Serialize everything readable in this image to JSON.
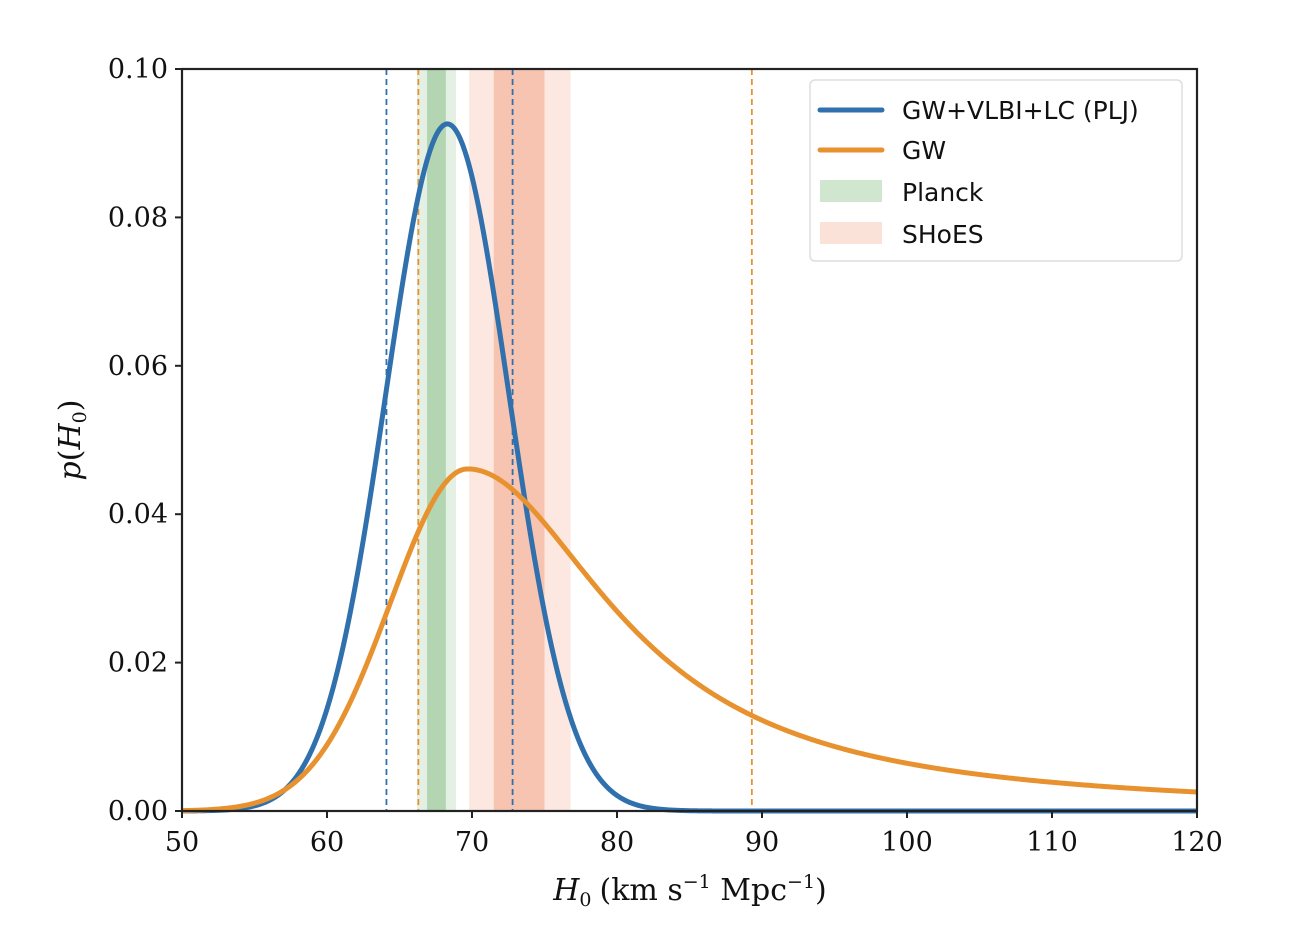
{
  "chart_data": {
    "type": "line",
    "xlim": [
      50,
      120
    ],
    "ylim": [
      0,
      0.1
    ],
    "x_ticks": [
      50,
      60,
      70,
      80,
      90,
      100,
      110,
      120
    ],
    "x_tick_labels": [
      "50",
      "60",
      "70",
      "80",
      "90",
      "100",
      "110",
      "120"
    ],
    "y_ticks": [
      0,
      0.02,
      0.04,
      0.06,
      0.08,
      0.1
    ],
    "y_tick_labels": [
      "0.00",
      "0.02",
      "0.04",
      "0.06",
      "0.08",
      "0.10"
    ],
    "xlabel": {
      "sym": "H",
      "sub": "0",
      "open": "(km s",
      "sup1": "−1",
      "mid": " Mpc",
      "sup2": "−1",
      "close": ")"
    },
    "ylabel": {
      "p": "p",
      "open": "(",
      "sym": "H",
      "sub": "0",
      "close": ")"
    },
    "series": [
      {
        "name": "GW+VLBI+LC (PLJ)",
        "color": "#3070ad",
        "shape": "gaussian",
        "peak_x": 68.3,
        "peak_y": 0.0926,
        "sigma": 4.25,
        "credible_interval": [
          64.1,
          72.8
        ]
      },
      {
        "name": "GW",
        "color": "#e8922f",
        "shape": "skewed",
        "peak_x": 69.7,
        "peak_y": 0.0461,
        "sigma_left": 5.35,
        "tail_gamma": 12.2,
        "credible_interval": [
          66.3,
          89.3
        ]
      }
    ],
    "bands": [
      {
        "name": "Planck",
        "color": "#5aa454",
        "inner": [
          66.9,
          68.2
        ],
        "outer": [
          66.2,
          68.9
        ],
        "inner_opacity": 0.35,
        "outer_opacity": 0.16
      },
      {
        "name": "SHoES",
        "color": "#ee8a66",
        "inner": [
          71.5,
          75.0
        ],
        "outer": [
          69.8,
          76.8
        ],
        "inner_opacity": 0.38,
        "outer_opacity": 0.2
      }
    ],
    "legend": {
      "position": "top-right",
      "entries": [
        {
          "label": "GW+VLBI+LC (PLJ)",
          "kind": "line",
          "color": "#3070ad"
        },
        {
          "label": "GW",
          "kind": "line",
          "color": "#e8922f"
        },
        {
          "label": "Planck",
          "kind": "patch",
          "color": "#5aa454"
        },
        {
          "label": "SHoES",
          "kind": "patch",
          "color": "#ee8a66"
        }
      ]
    }
  }
}
